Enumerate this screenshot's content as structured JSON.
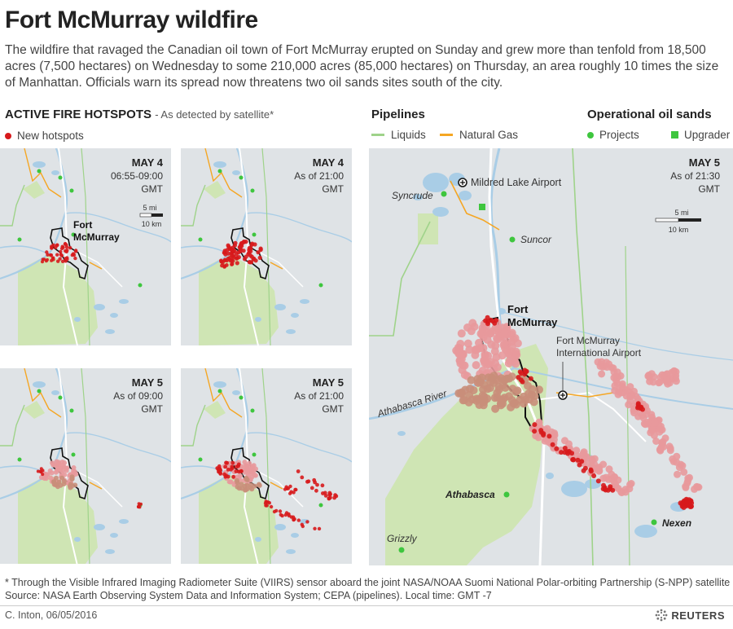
{
  "title": "Fort McMurray wildfire",
  "lede": "The wildfire that ravaged the Canadian oil town of Fort McMurray erupted on Sunday and grew more than tenfold from 18,500 acres (7,500 hectares) on Wednesday to some 210,000 acres (85,000 hectares) on Thursday, an area roughly 10 times the size of Manhattan. Officials warn its spread now threatens two oil sands sites south of the city.",
  "hotspots_section": {
    "heading": "ACTIVE FIRE HOTSPOTS",
    "subheading": "- As detected by satellite*",
    "legend_new": "New hotspots",
    "legend_color": "#d7191c"
  },
  "pipelines": {
    "heading": "Pipelines",
    "liquids": "Liquids",
    "natural_gas": "Natural Gas",
    "liquids_color": "#9fd38a",
    "gas_color": "#f5a623"
  },
  "oil_sands": {
    "heading": "Operational oil sands",
    "projects": "Projects",
    "upgrader": "Upgrader",
    "color": "#3ec63e"
  },
  "small_maps": [
    {
      "date": "MAY 4",
      "time1": "06:55-09:00",
      "time2": "GMT"
    },
    {
      "date": "MAY 4",
      "time1": "As of 21:00",
      "time2": "GMT"
    },
    {
      "date": "MAY 5",
      "time1": "As of 09:00",
      "time2": "GMT"
    },
    {
      "date": "MAY 5",
      "time1": "As of 21:00",
      "time2": "GMT"
    }
  ],
  "small_scale": {
    "mi": "5 mi",
    "km": "10 km"
  },
  "small_city": {
    "line1": "Fort",
    "line2": "McMurray"
  },
  "large_map": {
    "date": "MAY 5",
    "time1": "As of 21:30",
    "time2": "GMT",
    "scale_mi": "5 mi",
    "scale_km": "10 km",
    "city_line1": "Fort",
    "city_line2": "McMurray",
    "airport_north": "Mildred Lake Airport",
    "airport_intl_line1": "Fort McMurray",
    "airport_intl_line2": "International Airport",
    "river": "Athabasca River",
    "syncrude": "Syncrude",
    "suncor": "Suncor",
    "athabasca": "Athabasca",
    "nexen": "Nexen",
    "grizzly": "Grizzly"
  },
  "footnote": "* Through the Visible Infrared Imaging Radiometer Suite (VIIRS) sensor aboard the joint NASA/NOAA Suomi National Polar-orbiting Partnership (S-NPP) satellite",
  "source": "Source: NASA Earth Observing System Data and Information System; CEPA (pipelines).  Local time: GMT -7",
  "credit": "C. Inton, 06/05/2016",
  "brand": "REUTERS",
  "colors": {
    "map_bg": "#dfe3e6",
    "water": "#a9cde6",
    "forest": "#cfe5b4",
    "new_hotspot": "#d7191c",
    "old_hotspot": "#e8999c",
    "older_hotspot": "#c98e7a"
  }
}
